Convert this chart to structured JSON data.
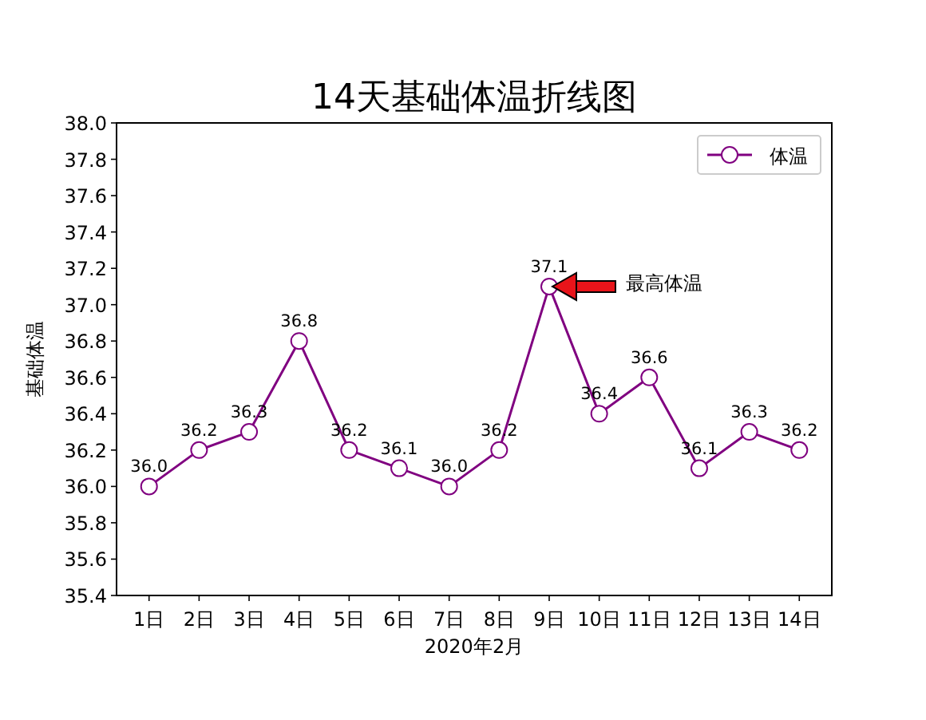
{
  "chart_data": {
    "type": "line",
    "title": "14天基础体温折线图",
    "xlabel": "2020年2月",
    "ylabel": "基础体温",
    "categories": [
      "1日",
      "2日",
      "3日",
      "4日",
      "5日",
      "6日",
      "7日",
      "8日",
      "9日",
      "10日",
      "11日",
      "12日",
      "13日",
      "14日"
    ],
    "series": [
      {
        "name": "体温",
        "color": "#800080",
        "values": [
          36.0,
          36.2,
          36.3,
          36.8,
          36.2,
          36.1,
          36.0,
          36.2,
          37.1,
          36.4,
          36.6,
          36.1,
          36.3,
          36.2
        ],
        "value_labels": [
          "36.0",
          "36.2",
          "36.3",
          "36.8",
          "36.2",
          "36.1",
          "36.0",
          "36.2",
          "37.1",
          "36.4",
          "36.6",
          "36.1",
          "36.3",
          "36.2"
        ]
      }
    ],
    "ylim": [
      35.4,
      38.0
    ],
    "yticks": [
      35.4,
      35.6,
      35.8,
      {
        "value": 36.0,
        "label": "36.0"
      },
      36.2,
      36.4,
      36.6,
      36.8,
      {
        "value": 37.0,
        "label": "37.0"
      },
      37.2,
      37.4,
      37.6,
      37.8,
      {
        "value": 38.0,
        "label": "38.0"
      }
    ],
    "marker": "circle",
    "line_style": "solid",
    "legend": "top right",
    "annotations": [
      {
        "text": "最高体温",
        "x": "9日",
        "y": 37.1
      }
    ]
  }
}
